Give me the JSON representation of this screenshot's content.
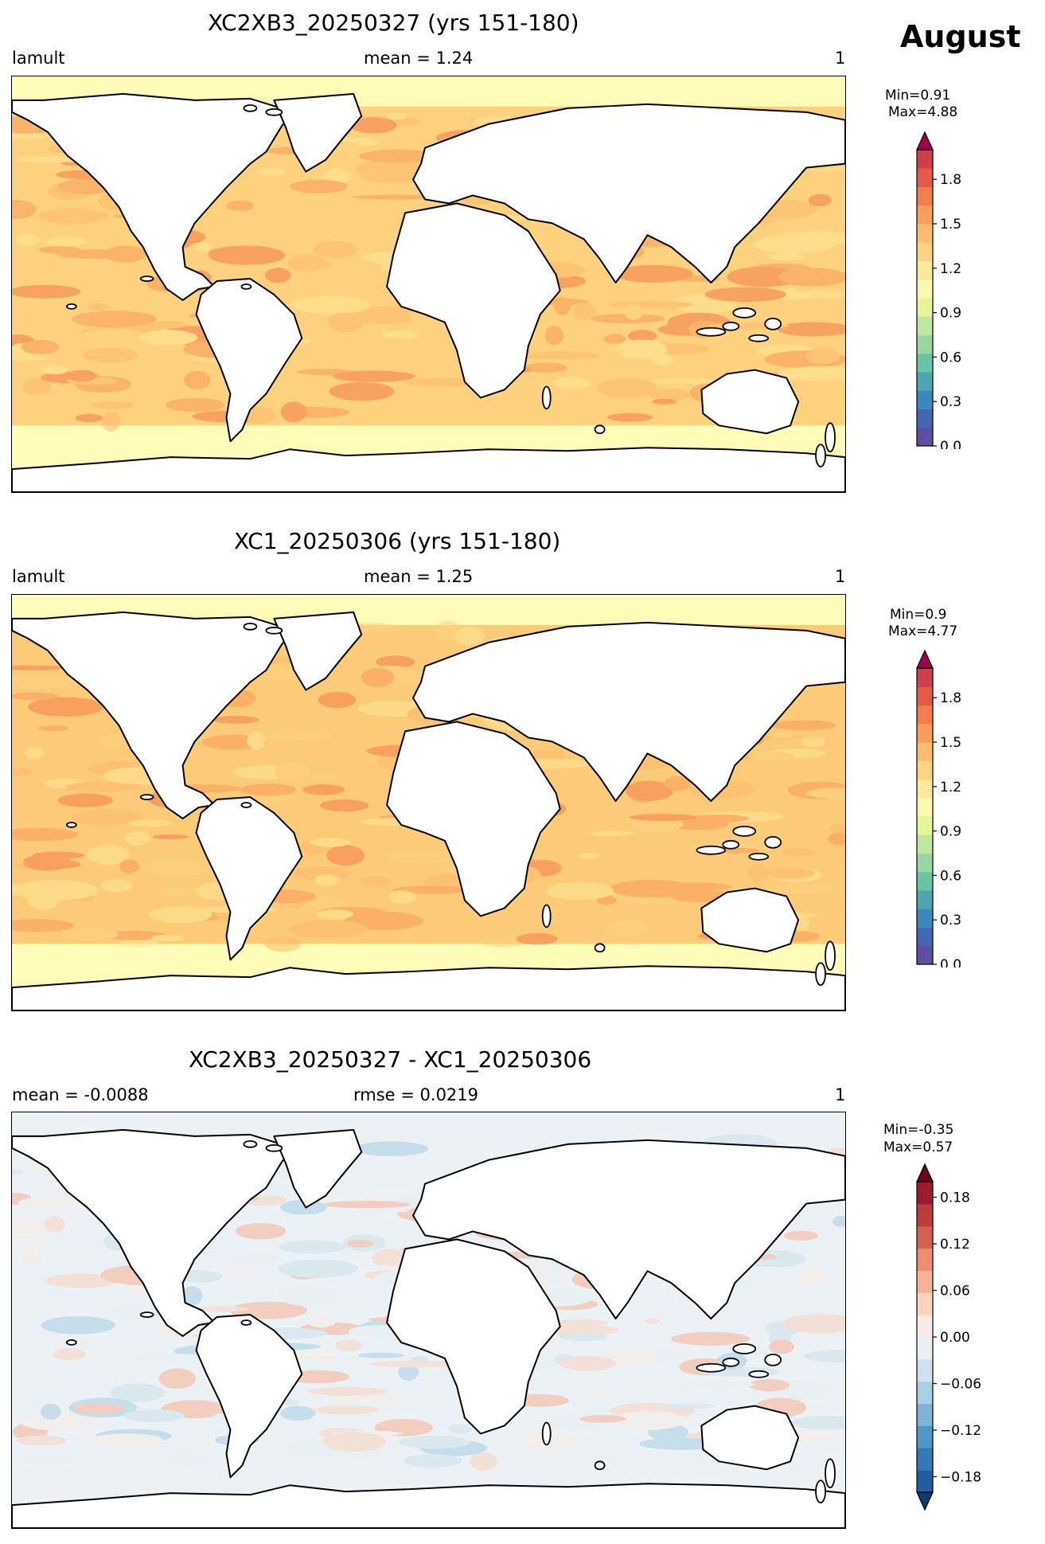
{
  "page": {
    "month": "August"
  },
  "panels": [
    {
      "title": "XC2XB3_20250327 (yrs 151-180)",
      "left_label": "lamult",
      "center_label": "mean = 1.24",
      "right_label": "1",
      "min_text": "Min=0.91",
      "max_text": "Max=4.88",
      "colorbar": {
        "colormap": "RdYlBu-like (Spectral_r)",
        "ticks": [
          "0.0",
          "0.3",
          "0.6",
          "0.9",
          "1.2",
          "1.5",
          "1.8"
        ],
        "range": [
          0.0,
          2.0
        ],
        "extend": "max",
        "colors": [
          "#5e4fa2",
          "#4467b0",
          "#3a88bc",
          "#4ba6b0",
          "#6bc3a5",
          "#98d6a4",
          "#c1e6a0",
          "#e6f598",
          "#fbf8b0",
          "#fee89a",
          "#fed481",
          "#fdbc6c",
          "#f99d59",
          "#f47d4d",
          "#e35b46",
          "#cc3f4b",
          "#a0004a"
        ]
      },
      "map": {
        "ocean_base": "#fdd17d",
        "high_lat_color": "#fefcb6"
      }
    },
    {
      "title": "XC1_20250306 (yrs 151-180)",
      "left_label": "lamult",
      "center_label": "mean = 1.25",
      "right_label": "1",
      "min_text": "Min=0.9",
      "max_text": "Max=4.77",
      "colorbar": {
        "colormap": "RdYlBu-like (Spectral_r)",
        "ticks": [
          "0.0",
          "0.3",
          "0.6",
          "0.9",
          "1.2",
          "1.5",
          "1.8"
        ],
        "range": [
          0.0,
          2.0
        ],
        "extend": "max",
        "colors": [
          "#5e4fa2",
          "#4467b0",
          "#3a88bc",
          "#4ba6b0",
          "#6bc3a5",
          "#98d6a4",
          "#c1e6a0",
          "#e6f598",
          "#fbf8b0",
          "#fee89a",
          "#fed481",
          "#fdbc6c",
          "#f99d59",
          "#f47d4d",
          "#e35b46",
          "#cc3f4b",
          "#a0004a"
        ]
      },
      "map": {
        "ocean_base": "#fccb78",
        "high_lat_color": "#fefcb6"
      }
    },
    {
      "title": "XC2XB3_20250327 - XC1_20250306",
      "left_label": "mean = -0.0088",
      "center_label": "rmse = 0.0219",
      "right_label": "1",
      "min_text": "Min=-0.35",
      "max_text": "Max=0.57",
      "colorbar": {
        "colormap": "RdBu_r",
        "ticks": [
          "−0.18",
          "−0.12",
          "−0.06",
          "0.00",
          "0.06",
          "0.12",
          "0.18"
        ],
        "range": [
          -0.2,
          0.2
        ],
        "extend": "both",
        "colors": [
          "#0b3c74",
          "#1f5f9f",
          "#3479b3",
          "#5197c5",
          "#7eb4d6",
          "#a9cfe4",
          "#cde2ee",
          "#e9f0f4",
          "#f7ece5",
          "#fbd3bf",
          "#f6b396",
          "#eb8e71",
          "#d6604d",
          "#bd3d3a",
          "#9c1a2d",
          "#6c0021"
        ]
      },
      "map": {
        "ocean_base": "#ebf1f4",
        "high_lat_color": "#ebf1f4"
      }
    }
  ]
}
